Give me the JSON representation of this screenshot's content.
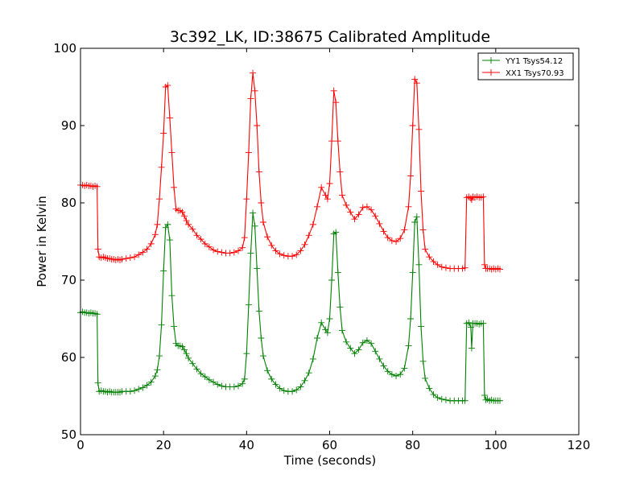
{
  "chart_data": {
    "type": "line",
    "title": "3c392_LK, ID:38675 Calibrated Amplitude",
    "xlabel": "Time (seconds)",
    "ylabel": "Power in Kelvin",
    "xlim": [
      0,
      120
    ],
    "ylim": [
      50,
      100
    ],
    "xticks": [
      0,
      20,
      40,
      60,
      80,
      100,
      120
    ],
    "yticks": [
      50,
      60,
      70,
      80,
      90,
      100
    ],
    "grid": false,
    "legend_position": "top-right",
    "marker": "plus",
    "series": [
      {
        "name": "YY1 Tsys54.12",
        "color": "#008000",
        "points": [
          [
            0,
            65.8
          ],
          [
            0.5,
            65.9
          ],
          [
            1,
            65.8
          ],
          [
            1.5,
            65.8
          ],
          [
            2,
            65.7
          ],
          [
            2.5,
            65.8
          ],
          [
            3,
            65.7
          ],
          [
            3.5,
            65.7
          ],
          [
            4,
            65.6
          ],
          [
            4.2,
            56.7
          ],
          [
            4.5,
            55.6
          ],
          [
            5,
            55.7
          ],
          [
            5.5,
            55.6
          ],
          [
            6,
            55.6
          ],
          [
            6.5,
            55.5
          ],
          [
            7,
            55.6
          ],
          [
            7.5,
            55.5
          ],
          [
            8,
            55.5
          ],
          [
            8.5,
            55.5
          ],
          [
            9,
            55.5
          ],
          [
            9.5,
            55.5
          ],
          [
            10,
            55.6
          ],
          [
            11,
            55.6
          ],
          [
            12,
            55.6
          ],
          [
            13,
            55.7
          ],
          [
            14,
            55.9
          ],
          [
            15,
            56.1
          ],
          [
            16,
            56.4
          ],
          [
            17,
            56.8
          ],
          [
            18,
            57.6
          ],
          [
            18.5,
            58.4
          ],
          [
            19,
            60.2
          ],
          [
            19.5,
            64.2
          ],
          [
            20,
            71.2
          ],
          [
            20.5,
            76.8
          ],
          [
            21,
            77.2
          ],
          [
            21.5,
            75.2
          ],
          [
            22,
            68.0
          ],
          [
            22.5,
            64.0
          ],
          [
            23,
            61.8
          ],
          [
            23.5,
            61.5
          ],
          [
            24,
            61.5
          ],
          [
            24.5,
            61.4
          ],
          [
            25,
            61.0
          ],
          [
            25.5,
            60.5
          ],
          [
            26,
            59.9
          ],
          [
            27,
            59.2
          ],
          [
            28,
            58.5
          ],
          [
            29,
            57.9
          ],
          [
            30,
            57.5
          ],
          [
            31,
            57.1
          ],
          [
            32,
            56.8
          ],
          [
            33,
            56.5
          ],
          [
            34,
            56.3
          ],
          [
            35,
            56.2
          ],
          [
            36,
            56.2
          ],
          [
            37,
            56.2
          ],
          [
            38,
            56.3
          ],
          [
            39,
            56.6
          ],
          [
            39.5,
            57.2
          ],
          [
            40,
            60.5
          ],
          [
            40.5,
            66.8
          ],
          [
            41,
            73.5
          ],
          [
            41.5,
            78.7
          ],
          [
            42,
            77.0
          ],
          [
            42.5,
            71.5
          ],
          [
            43,
            66.0
          ],
          [
            43.5,
            62.5
          ],
          [
            44,
            60.2
          ],
          [
            45,
            58.3
          ],
          [
            46,
            57.2
          ],
          [
            47,
            56.5
          ],
          [
            48,
            56.0
          ],
          [
            49,
            55.7
          ],
          [
            50,
            55.6
          ],
          [
            51,
            55.6
          ],
          [
            52,
            55.8
          ],
          [
            53,
            56.2
          ],
          [
            54,
            57.0
          ],
          [
            55,
            58.0
          ],
          [
            56,
            59.8
          ],
          [
            57,
            62.5
          ],
          [
            58,
            64.5
          ],
          [
            59,
            63.6
          ],
          [
            59.5,
            63.2
          ],
          [
            60,
            65.0
          ],
          [
            60.5,
            70.0
          ],
          [
            61,
            76.0
          ],
          [
            61.5,
            76.2
          ],
          [
            62,
            71.0
          ],
          [
            62.5,
            66.5
          ],
          [
            63,
            63.5
          ],
          [
            64,
            62.0
          ],
          [
            65,
            61.2
          ],
          [
            66,
            60.5
          ],
          [
            67,
            61.0
          ],
          [
            68,
            61.9
          ],
          [
            69,
            62.2
          ],
          [
            70,
            61.8
          ],
          [
            71,
            60.8
          ],
          [
            72,
            59.8
          ],
          [
            73,
            58.9
          ],
          [
            74,
            58.2
          ],
          [
            75,
            57.8
          ],
          [
            76,
            57.6
          ],
          [
            77,
            57.8
          ],
          [
            78,
            58.6
          ],
          [
            79,
            61.5
          ],
          [
            79.5,
            65.0
          ],
          [
            80,
            71.0
          ],
          [
            80.5,
            77.5
          ],
          [
            81,
            78.2
          ],
          [
            81.5,
            72.0
          ],
          [
            82,
            64.0
          ],
          [
            82.5,
            59.5
          ],
          [
            83,
            57.3
          ],
          [
            84,
            56.0
          ],
          [
            85,
            55.2
          ],
          [
            86,
            54.8
          ],
          [
            87,
            54.6
          ],
          [
            88,
            54.5
          ],
          [
            89,
            54.4
          ],
          [
            90,
            54.4
          ],
          [
            91,
            54.4
          ],
          [
            92,
            54.4
          ],
          [
            92.6,
            54.4
          ],
          [
            93,
            64.4
          ],
          [
            93.5,
            64.5
          ],
          [
            94,
            63.9
          ],
          [
            94.2,
            61.2
          ],
          [
            94.5,
            64.4
          ],
          [
            95,
            64.4
          ],
          [
            95.5,
            64.4
          ],
          [
            96,
            64.3
          ],
          [
            96.5,
            64.4
          ],
          [
            97,
            64.4
          ],
          [
            97.3,
            55.1
          ],
          [
            97.6,
            54.5
          ],
          [
            98,
            54.6
          ],
          [
            98.5,
            54.4
          ],
          [
            99,
            54.5
          ],
          [
            99.5,
            54.4
          ],
          [
            100,
            54.4
          ],
          [
            100.5,
            54.4
          ],
          [
            101,
            54.4
          ]
        ]
      },
      {
        "name": "XX1 Tsys70.93",
        "color": "#ff0000",
        "points": [
          [
            0,
            82.3
          ],
          [
            0.5,
            82.3
          ],
          [
            1,
            82.2
          ],
          [
            1.5,
            82.3
          ],
          [
            2,
            82.2
          ],
          [
            2.5,
            82.2
          ],
          [
            3,
            82.1
          ],
          [
            3.5,
            82.2
          ],
          [
            4,
            82.1
          ],
          [
            4.2,
            74.0
          ],
          [
            4.5,
            73.0
          ],
          [
            5,
            72.9
          ],
          [
            5.5,
            73.0
          ],
          [
            6,
            72.9
          ],
          [
            6.5,
            72.8
          ],
          [
            7,
            72.8
          ],
          [
            7.5,
            72.7
          ],
          [
            8,
            72.7
          ],
          [
            8.5,
            72.6
          ],
          [
            9,
            72.7
          ],
          [
            9.5,
            72.6
          ],
          [
            10,
            72.7
          ],
          [
            11,
            72.8
          ],
          [
            12,
            72.9
          ],
          [
            13,
            73.0
          ],
          [
            14,
            73.3
          ],
          [
            15,
            73.6
          ],
          [
            16,
            74.0
          ],
          [
            17,
            74.7
          ],
          [
            18,
            75.9
          ],
          [
            18.5,
            77.2
          ],
          [
            19,
            80.5
          ],
          [
            19.5,
            84.6
          ],
          [
            20,
            89.0
          ],
          [
            20.5,
            95.0
          ],
          [
            21,
            95.2
          ],
          [
            21.5,
            91.0
          ],
          [
            22,
            86.5
          ],
          [
            22.5,
            82.0
          ],
          [
            23,
            79.2
          ],
          [
            23.5,
            79.0
          ],
          [
            24,
            79.0
          ],
          [
            24.5,
            78.8
          ],
          [
            25,
            78.3
          ],
          [
            25.5,
            77.7
          ],
          [
            26,
            77.2
          ],
          [
            27,
            76.6
          ],
          [
            28,
            75.8
          ],
          [
            29,
            75.3
          ],
          [
            30,
            74.7
          ],
          [
            31,
            74.3
          ],
          [
            32,
            73.9
          ],
          [
            33,
            73.7
          ],
          [
            34,
            73.6
          ],
          [
            35,
            73.5
          ],
          [
            36,
            73.5
          ],
          [
            37,
            73.6
          ],
          [
            38,
            73.8
          ],
          [
            39,
            74.2
          ],
          [
            39.5,
            75.5
          ],
          [
            40,
            80.5
          ],
          [
            40.5,
            86.5
          ],
          [
            41,
            93.5
          ],
          [
            41.5,
            96.8
          ],
          [
            42,
            94.5
          ],
          [
            42.5,
            90.0
          ],
          [
            43,
            84.0
          ],
          [
            43.5,
            80.0
          ],
          [
            44,
            77.5
          ],
          [
            45,
            75.6
          ],
          [
            46,
            74.5
          ],
          [
            47,
            73.8
          ],
          [
            48,
            73.4
          ],
          [
            49,
            73.2
          ],
          [
            50,
            73.1
          ],
          [
            51,
            73.1
          ],
          [
            52,
            73.3
          ],
          [
            53,
            73.8
          ],
          [
            54,
            74.6
          ],
          [
            55,
            75.8
          ],
          [
            56,
            77.2
          ],
          [
            57,
            79.5
          ],
          [
            58,
            82.0
          ],
          [
            59,
            81.0
          ],
          [
            59.5,
            80.5
          ],
          [
            60,
            82.5
          ],
          [
            60.5,
            88.0
          ],
          [
            61,
            94.5
          ],
          [
            61.5,
            93.0
          ],
          [
            62,
            88.0
          ],
          [
            62.5,
            84.0
          ],
          [
            63,
            81.0
          ],
          [
            64,
            79.7
          ],
          [
            65,
            78.8
          ],
          [
            66,
            77.9
          ],
          [
            67,
            78.5
          ],
          [
            68,
            79.4
          ],
          [
            69,
            79.5
          ],
          [
            70,
            79.1
          ],
          [
            71,
            78.3
          ],
          [
            72,
            77.3
          ],
          [
            73,
            76.3
          ],
          [
            74,
            75.5
          ],
          [
            75,
            75.1
          ],
          [
            76,
            75.0
          ],
          [
            77,
            75.4
          ],
          [
            78,
            76.5
          ],
          [
            79,
            79.5
          ],
          [
            79.5,
            83.5
          ],
          [
            80,
            90.0
          ],
          [
            80.5,
            96.0
          ],
          [
            81,
            95.5
          ],
          [
            81.5,
            89.5
          ],
          [
            82,
            81.5
          ],
          [
            82.5,
            76.5
          ],
          [
            83,
            74.0
          ],
          [
            84,
            73.0
          ],
          [
            85,
            72.4
          ],
          [
            86,
            72.0
          ],
          [
            87,
            71.7
          ],
          [
            88,
            71.6
          ],
          [
            89,
            71.5
          ],
          [
            90,
            71.5
          ],
          [
            91,
            71.5
          ],
          [
            92,
            71.5
          ],
          [
            92.6,
            71.6
          ],
          [
            93,
            80.7
          ],
          [
            93.5,
            80.8
          ],
          [
            94,
            80.6
          ],
          [
            94.2,
            80.4
          ],
          [
            94.5,
            80.8
          ],
          [
            95,
            80.7
          ],
          [
            95.5,
            80.8
          ],
          [
            96,
            80.7
          ],
          [
            96.5,
            80.7
          ],
          [
            97,
            80.8
          ],
          [
            97.3,
            72.0
          ],
          [
            97.6,
            71.5
          ],
          [
            98,
            71.5
          ],
          [
            98.5,
            71.5
          ],
          [
            99,
            71.4
          ],
          [
            99.5,
            71.5
          ],
          [
            100,
            71.4
          ],
          [
            100.5,
            71.5
          ],
          [
            101,
            71.4
          ]
        ]
      }
    ]
  }
}
